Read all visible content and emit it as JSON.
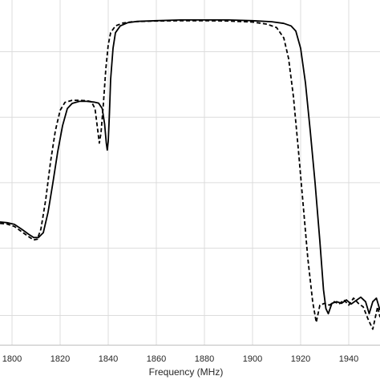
{
  "chart_data": {
    "type": "line",
    "title": "",
    "xlabel": "Frequency (MHz)",
    "ylabel": "",
    "xlim": [
      1795,
      1953
    ],
    "ylim": [
      0,
      100
    ],
    "grid": true,
    "legend": "none",
    "x_ticks": [
      1800,
      1820,
      1840,
      1860,
      1880,
      1900,
      1920,
      1940
    ],
    "x_tick_labels": [
      "1800",
      "1820",
      "1840",
      "1860",
      "1880",
      "1900",
      "1920",
      "1940"
    ],
    "y_gridlines": [
      8.5,
      28,
      47,
      66,
      85
    ],
    "series": [
      {
        "style": "solid",
        "color": "#000000",
        "points": [
          [
            1795,
            35.6
          ],
          [
            1798,
            35.4
          ],
          [
            1801,
            34.9
          ],
          [
            1804,
            33.5
          ],
          [
            1807,
            32.0
          ],
          [
            1809,
            31.1
          ],
          [
            1811,
            31.1
          ],
          [
            1813,
            32.5
          ],
          [
            1815,
            38.5
          ],
          [
            1817,
            47.0
          ],
          [
            1819,
            56.0
          ],
          [
            1821,
            63.5
          ],
          [
            1823,
            68.5
          ],
          [
            1825,
            70.0
          ],
          [
            1828,
            70.6
          ],
          [
            1831,
            70.6
          ],
          [
            1834,
            70.4
          ],
          [
            1836,
            70.1
          ],
          [
            1837.5,
            68.5
          ],
          [
            1838.5,
            64.0
          ],
          [
            1839.2,
            58.5
          ],
          [
            1839.6,
            56.5
          ],
          [
            1840,
            59.0
          ],
          [
            1840.5,
            67.0
          ],
          [
            1841,
            77.0
          ],
          [
            1842,
            86.0
          ],
          [
            1843,
            90.5
          ],
          [
            1845,
            92.5
          ],
          [
            1848,
            93.4
          ],
          [
            1852,
            93.8
          ],
          [
            1860,
            94.0
          ],
          [
            1870,
            94.2
          ],
          [
            1880,
            94.2
          ],
          [
            1890,
            94.2
          ],
          [
            1900,
            94.0
          ],
          [
            1908,
            93.7
          ],
          [
            1913,
            93.2
          ],
          [
            1916,
            92.5
          ],
          [
            1918,
            91.0
          ],
          [
            1920,
            86.0
          ],
          [
            1922,
            76.0
          ],
          [
            1924,
            62.0
          ],
          [
            1926,
            47.0
          ],
          [
            1928,
            30.0
          ],
          [
            1929.5,
            16.0
          ],
          [
            1930.5,
            10.5
          ],
          [
            1931.5,
            9.0
          ],
          [
            1933,
            12.0
          ],
          [
            1935,
            12.5
          ],
          [
            1937,
            12.0
          ],
          [
            1939,
            13.0
          ],
          [
            1941,
            11.8
          ],
          [
            1943,
            12.8
          ],
          [
            1945,
            13.8
          ],
          [
            1947,
            12.5
          ],
          [
            1948.5,
            9.0
          ],
          [
            1950,
            12.5
          ],
          [
            1951.5,
            13.5
          ],
          [
            1953,
            10.0
          ]
        ]
      },
      {
        "style": "dashed",
        "color": "#000000",
        "points": [
          [
            1795,
            35.2
          ],
          [
            1798,
            35.0
          ],
          [
            1801,
            34.3
          ],
          [
            1804,
            32.8
          ],
          [
            1807,
            31.3
          ],
          [
            1809,
            30.4
          ],
          [
            1810.5,
            30.6
          ],
          [
            1812,
            33.5
          ],
          [
            1814,
            42.0
          ],
          [
            1816,
            53.0
          ],
          [
            1818,
            62.0
          ],
          [
            1820,
            68.0
          ],
          [
            1822,
            70.3
          ],
          [
            1825,
            70.9
          ],
          [
            1828,
            70.9
          ],
          [
            1831,
            70.8
          ],
          [
            1833,
            70.5
          ],
          [
            1834.5,
            68.5
          ],
          [
            1835.5,
            63.0
          ],
          [
            1836.3,
            58.5
          ],
          [
            1837,
            61.5
          ],
          [
            1838,
            70.0
          ],
          [
            1839,
            80.0
          ],
          [
            1840,
            87.0
          ],
          [
            1841,
            90.5
          ],
          [
            1843,
            92.5
          ],
          [
            1846,
            93.3
          ],
          [
            1850,
            93.7
          ],
          [
            1860,
            93.9
          ],
          [
            1870,
            94.0
          ],
          [
            1880,
            94.0
          ],
          [
            1890,
            93.9
          ],
          [
            1900,
            93.6
          ],
          [
            1906,
            93.0
          ],
          [
            1910,
            92.0
          ],
          [
            1913,
            89.0
          ],
          [
            1915,
            83.0
          ],
          [
            1917,
            72.0
          ],
          [
            1919,
            57.0
          ],
          [
            1921,
            41.0
          ],
          [
            1923,
            25.0
          ],
          [
            1925,
            12.5
          ],
          [
            1926.5,
            6.5
          ],
          [
            1928,
            11.5
          ],
          [
            1930,
            12.0
          ],
          [
            1932,
            11.5
          ],
          [
            1934,
            12.5
          ],
          [
            1936,
            11.8
          ],
          [
            1938,
            13.0
          ],
          [
            1940,
            11.5
          ],
          [
            1942,
            13.5
          ],
          [
            1944,
            12.0
          ],
          [
            1946,
            11.0
          ],
          [
            1948,
            7.5
          ],
          [
            1950,
            4.5
          ],
          [
            1952,
            11.0
          ],
          [
            1953,
            8.0
          ]
        ]
      }
    ]
  }
}
